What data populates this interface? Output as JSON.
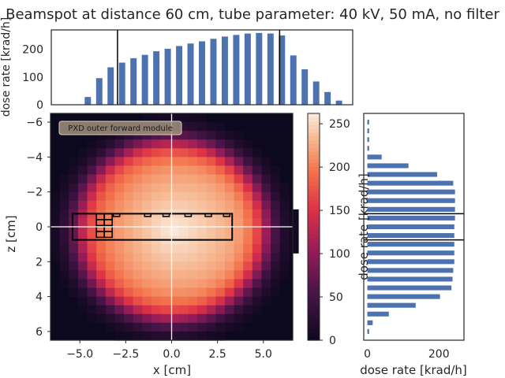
{
  "figure": {
    "title": "Beamspot at distance 60 cm, tube parameter: 40 kV, 50 mA, no filter"
  },
  "chart_data": [
    {
      "panel": "top-histogram",
      "type": "bar",
      "ylabel": "dose rate [krad/h]",
      "yticks": [
        0,
        100,
        200
      ],
      "ylim": [
        0,
        270
      ],
      "xlim": [
        -6.6,
        6.6
      ],
      "x": [
        -6.0,
        -5.5,
        -5.0,
        -4.5,
        -4.0,
        -3.5,
        -3.0,
        -2.5,
        -2.0,
        -1.5,
        -1.0,
        -0.5,
        0.0,
        0.5,
        1.0,
        1.5,
        2.0,
        2.5,
        3.0,
        3.5,
        4.0,
        4.5,
        5.0,
        5.5,
        6.0
      ],
      "values": [
        0,
        0,
        28,
        96,
        135,
        152,
        168,
        180,
        193,
        202,
        212,
        221,
        229,
        238,
        246,
        252,
        257,
        259,
        257,
        250,
        178,
        128,
        84,
        46,
        15
      ],
      "bar_color": "#4c72b0",
      "vlines": [
        -3.7,
        3.4
      ]
    },
    {
      "panel": "heatmap",
      "type": "heatmap",
      "xlabel": "x [cm]",
      "ylabel": "z [cm]",
      "xticks": [
        -5.0,
        -2.5,
        0.0,
        2.5,
        5.0
      ],
      "xtick_labels": [
        "−5.0",
        "−2.5",
        "0.0",
        "2.5",
        "5.0"
      ],
      "xlim": [
        -6.6,
        6.6
      ],
      "yticks": [
        -6,
        -4,
        -2,
        0,
        2,
        4,
        6
      ],
      "ytick_labels": [
        "−6",
        "−4",
        "−2",
        "0",
        "2",
        "4",
        "6"
      ],
      "ylim_top_to_bottom": [
        -6.5,
        6.5
      ],
      "grid_step_cm": 0.5,
      "beam_center": [
        0.0,
        0.2
      ],
      "beam_radius": 5.2,
      "max_dose": 262,
      "annotation": "PXD outer forward module",
      "module_outline": {
        "x": [
          -5.4,
          3.3
        ],
        "z": [
          -0.75,
          0.75
        ]
      },
      "crosshair": {
        "x": 0.0,
        "z": 0.0
      }
    },
    {
      "panel": "colorbar",
      "type": "colorbar",
      "ticks": [
        0,
        50,
        100,
        150,
        200,
        250
      ],
      "range": [
        0,
        262
      ],
      "colormap": "rocket"
    },
    {
      "panel": "side-histogram",
      "type": "bar",
      "orientation": "horizontal",
      "xlabel": "dose rate [krad/h]",
      "ylabel": "dose rate [krad/h]",
      "xticks": [
        0,
        200
      ],
      "xlim": [
        -10,
        270
      ],
      "ylim_top_to_bottom": [
        -6.5,
        6.5
      ],
      "z": [
        -6.0,
        -5.5,
        -5.0,
        -4.5,
        -4.0,
        -3.5,
        -3.0,
        -2.5,
        -2.0,
        -1.5,
        -1.0,
        -0.5,
        0.0,
        0.5,
        1.0,
        1.5,
        2.0,
        2.5,
        3.0,
        3.5,
        4.0,
        4.5,
        5.0,
        5.5,
        6.0
      ],
      "values": [
        5,
        5,
        5,
        5,
        40,
        115,
        195,
        240,
        245,
        245,
        245,
        245,
        243,
        243,
        243,
        243,
        243,
        240,
        238,
        235,
        203,
        135,
        60,
        15,
        5
      ],
      "bar_color": "#4c72b0",
      "hlines": [
        -0.75,
        0.75
      ]
    }
  ]
}
